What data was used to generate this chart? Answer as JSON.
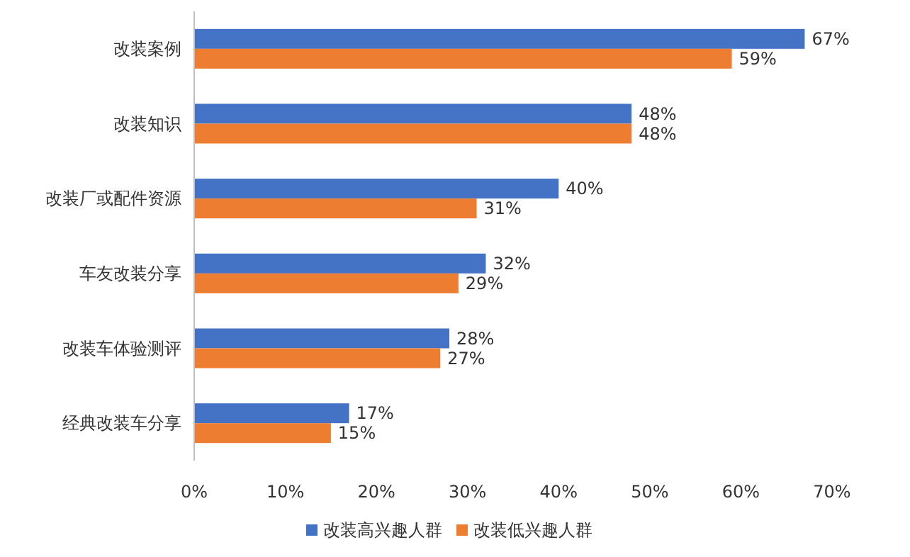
{
  "chart_data": {
    "type": "bar",
    "orientation": "horizontal",
    "categories": [
      "改装案例",
      "改装知识",
      "改装厂或配件资源",
      "车友改装分享",
      "改装车体验测评",
      "经典改装车分享"
    ],
    "series": [
      {
        "name": "改装高兴趣人群",
        "color": "#4472c4",
        "values": [
          67,
          48,
          40,
          32,
          28,
          17
        ],
        "value_labels": [
          "67%",
          "48%",
          "40%",
          "32%",
          "28%",
          "17%"
        ]
      },
      {
        "name": "改装低兴趣人群",
        "color": "#ed7d31",
        "values": [
          59,
          48,
          31,
          29,
          27,
          15
        ],
        "value_labels": [
          "59%",
          "48%",
          "31%",
          "29%",
          "27%",
          "15%"
        ]
      }
    ],
    "xlim": [
      0,
      70
    ],
    "xticks": [
      {
        "value": 0,
        "label": "0%"
      },
      {
        "value": 10,
        "label": "10%"
      },
      {
        "value": 20,
        "label": "20%"
      },
      {
        "value": 30,
        "label": "30%"
      },
      {
        "value": 40,
        "label": "40%"
      },
      {
        "value": 50,
        "label": "50%"
      },
      {
        "value": 60,
        "label": "60%"
      },
      {
        "value": 70,
        "label": "70%"
      }
    ],
    "legend": "bottom"
  }
}
